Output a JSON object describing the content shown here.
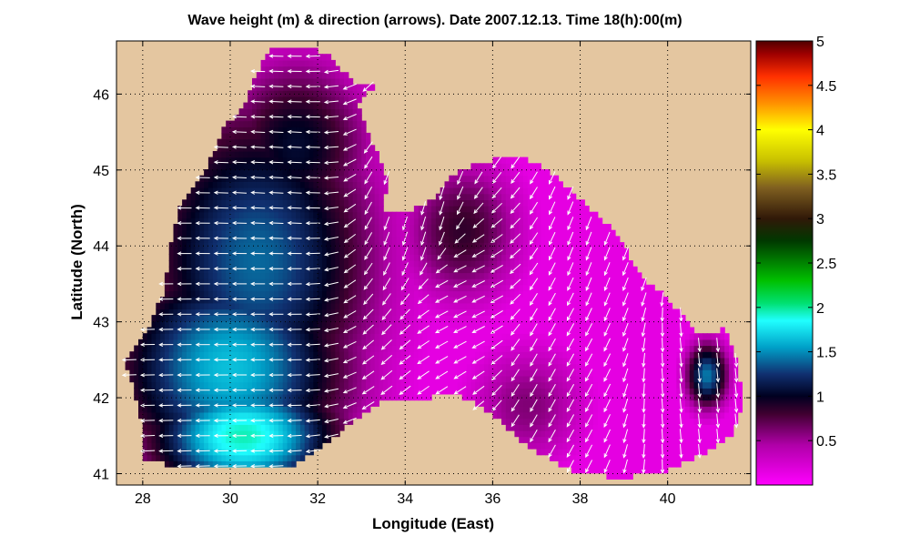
{
  "chart_data": {
    "type": "heatmap",
    "title": "Wave height (m) & direction (arrows). Date 2007.12.13. Time 18(h):00(m)",
    "xlabel": "Longitude (East)",
    "ylabel": "Latitude (North)",
    "xlim": [
      27.4,
      41.9
    ],
    "ylim": [
      40.85,
      46.7
    ],
    "x_ticks": [
      28,
      30,
      32,
      34,
      36,
      38,
      40
    ],
    "y_ticks": [
      41,
      42,
      43,
      44,
      45,
      46
    ],
    "x_tick_labels": [
      "28",
      "30",
      "32",
      "34",
      "36",
      "38",
      "40"
    ],
    "y_tick_labels": [
      "41",
      "42",
      "43",
      "44",
      "45",
      "46"
    ],
    "grid": "dotted",
    "land_color": "#e4c6a0",
    "colorbar": {
      "range": [
        0,
        5
      ],
      "tick_values": [
        0.5,
        1,
        1.5,
        2,
        2.5,
        3,
        3.5,
        4,
        4.5,
        5
      ],
      "tick_labels": [
        "0.5",
        "1",
        "1.5",
        "2",
        "2.5",
        "3",
        "3.5",
        "4",
        "4.5",
        "5"
      ],
      "stops": [
        {
          "v": 0.0,
          "c": "#ff00ff"
        },
        {
          "v": 0.45,
          "c": "#b000a8"
        },
        {
          "v": 0.8,
          "c": "#400030"
        },
        {
          "v": 1.0,
          "c": "#000020"
        },
        {
          "v": 1.25,
          "c": "#103070"
        },
        {
          "v": 1.55,
          "c": "#00a0c8"
        },
        {
          "v": 1.85,
          "c": "#20ffff"
        },
        {
          "v": 2.05,
          "c": "#00e070"
        },
        {
          "v": 2.3,
          "c": "#00c000"
        },
        {
          "v": 2.75,
          "c": "#003800"
        },
        {
          "v": 3.0,
          "c": "#301808"
        },
        {
          "v": 3.35,
          "c": "#806020"
        },
        {
          "v": 3.65,
          "c": "#c8c000"
        },
        {
          "v": 4.0,
          "c": "#ffff00"
        },
        {
          "v": 4.3,
          "c": "#ff9000"
        },
        {
          "v": 4.6,
          "c": "#ff3000"
        },
        {
          "v": 4.85,
          "c": "#a00000"
        },
        {
          "v": 5.0,
          "c": "#500000"
        }
      ]
    },
    "sea_outline": [
      [
        28.0,
        41.2
      ],
      [
        28.7,
        41.1
      ],
      [
        29.6,
        41.1
      ],
      [
        31.3,
        41.05
      ],
      [
        32.4,
        41.5
      ],
      [
        33.4,
        41.95
      ],
      [
        34.4,
        42.0
      ],
      [
        35.2,
        42.05
      ],
      [
        36.1,
        41.75
      ],
      [
        36.8,
        41.35
      ],
      [
        37.8,
        41.05
      ],
      [
        38.8,
        40.95
      ],
      [
        39.8,
        41.0
      ],
      [
        40.6,
        41.2
      ],
      [
        41.5,
        41.5
      ],
      [
        41.7,
        41.95
      ],
      [
        41.6,
        42.5
      ],
      [
        41.3,
        42.9
      ],
      [
        40.7,
        42.85
      ],
      [
        40.0,
        43.3
      ],
      [
        39.4,
        43.6
      ],
      [
        38.8,
        44.2
      ],
      [
        38.0,
        44.6
      ],
      [
        37.4,
        44.95
      ],
      [
        36.6,
        45.2
      ],
      [
        35.8,
        45.1
      ],
      [
        35.2,
        45.0
      ],
      [
        34.6,
        44.6
      ],
      [
        34.0,
        44.45
      ],
      [
        33.5,
        44.45
      ],
      [
        33.6,
        44.9
      ],
      [
        33.2,
        45.4
      ],
      [
        32.9,
        45.9
      ],
      [
        33.4,
        46.15
      ],
      [
        32.8,
        46.15
      ],
      [
        32.3,
        46.5
      ],
      [
        31.8,
        46.6
      ],
      [
        31.0,
        46.65
      ],
      [
        30.7,
        46.4
      ],
      [
        30.3,
        45.8
      ],
      [
        29.9,
        45.6
      ],
      [
        29.6,
        45.2
      ],
      [
        29.3,
        44.85
      ],
      [
        28.8,
        44.45
      ],
      [
        28.6,
        43.9
      ],
      [
        28.5,
        43.4
      ],
      [
        28.1,
        42.9
      ],
      [
        27.7,
        42.6
      ],
      [
        27.6,
        42.45
      ],
      [
        27.85,
        42.0
      ],
      [
        28.0,
        41.6
      ]
    ],
    "wave_centers": [
      {
        "lon": 30.3,
        "lat": 41.5,
        "height": 1.95,
        "sigma_lon": 1.6,
        "sigma_lat": 0.6
      },
      {
        "lon": 30.0,
        "lat": 42.4,
        "height": 1.65,
        "sigma_lon": 2.0,
        "sigma_lat": 1.1
      },
      {
        "lon": 30.6,
        "lat": 43.8,
        "height": 1.4,
        "sigma_lon": 2.0,
        "sigma_lat": 1.6
      },
      {
        "lon": 31.5,
        "lat": 45.3,
        "height": 1.05,
        "sigma_lon": 1.3,
        "sigma_lat": 0.9
      },
      {
        "lon": 35.3,
        "lat": 44.2,
        "height": 0.85,
        "sigma_lon": 1.0,
        "sigma_lat": 0.7
      },
      {
        "lon": 36.8,
        "lat": 41.9,
        "height": 0.6,
        "sigma_lon": 1.0,
        "sigma_lat": 0.6
      },
      {
        "lon": 40.9,
        "lat": 42.3,
        "height": 1.45,
        "sigma_lon": 0.35,
        "sigma_lat": 0.32
      }
    ],
    "wave_direction_field": [
      {
        "lon": 30.5,
        "lat": 43.0,
        "u": -1.0,
        "v": 0.0
      },
      {
        "lon": 31.0,
        "lat": 45.0,
        "u": -1.0,
        "v": 0.05
      },
      {
        "lon": 35.3,
        "lat": 43.4,
        "u": -1.0,
        "v": -0.5
      },
      {
        "lon": 34.5,
        "lat": 44.4,
        "u": -0.3,
        "v": -1.0
      },
      {
        "lon": 37.5,
        "lat": 42.5,
        "u": -0.5,
        "v": -0.9
      },
      {
        "lon": 38.5,
        "lat": 44.0,
        "u": -0.4,
        "v": -1.0
      },
      {
        "lon": 40.8,
        "lat": 42.3,
        "u": 0.1,
        "v": -1.0
      }
    ],
    "background_height": 0.15
  }
}
